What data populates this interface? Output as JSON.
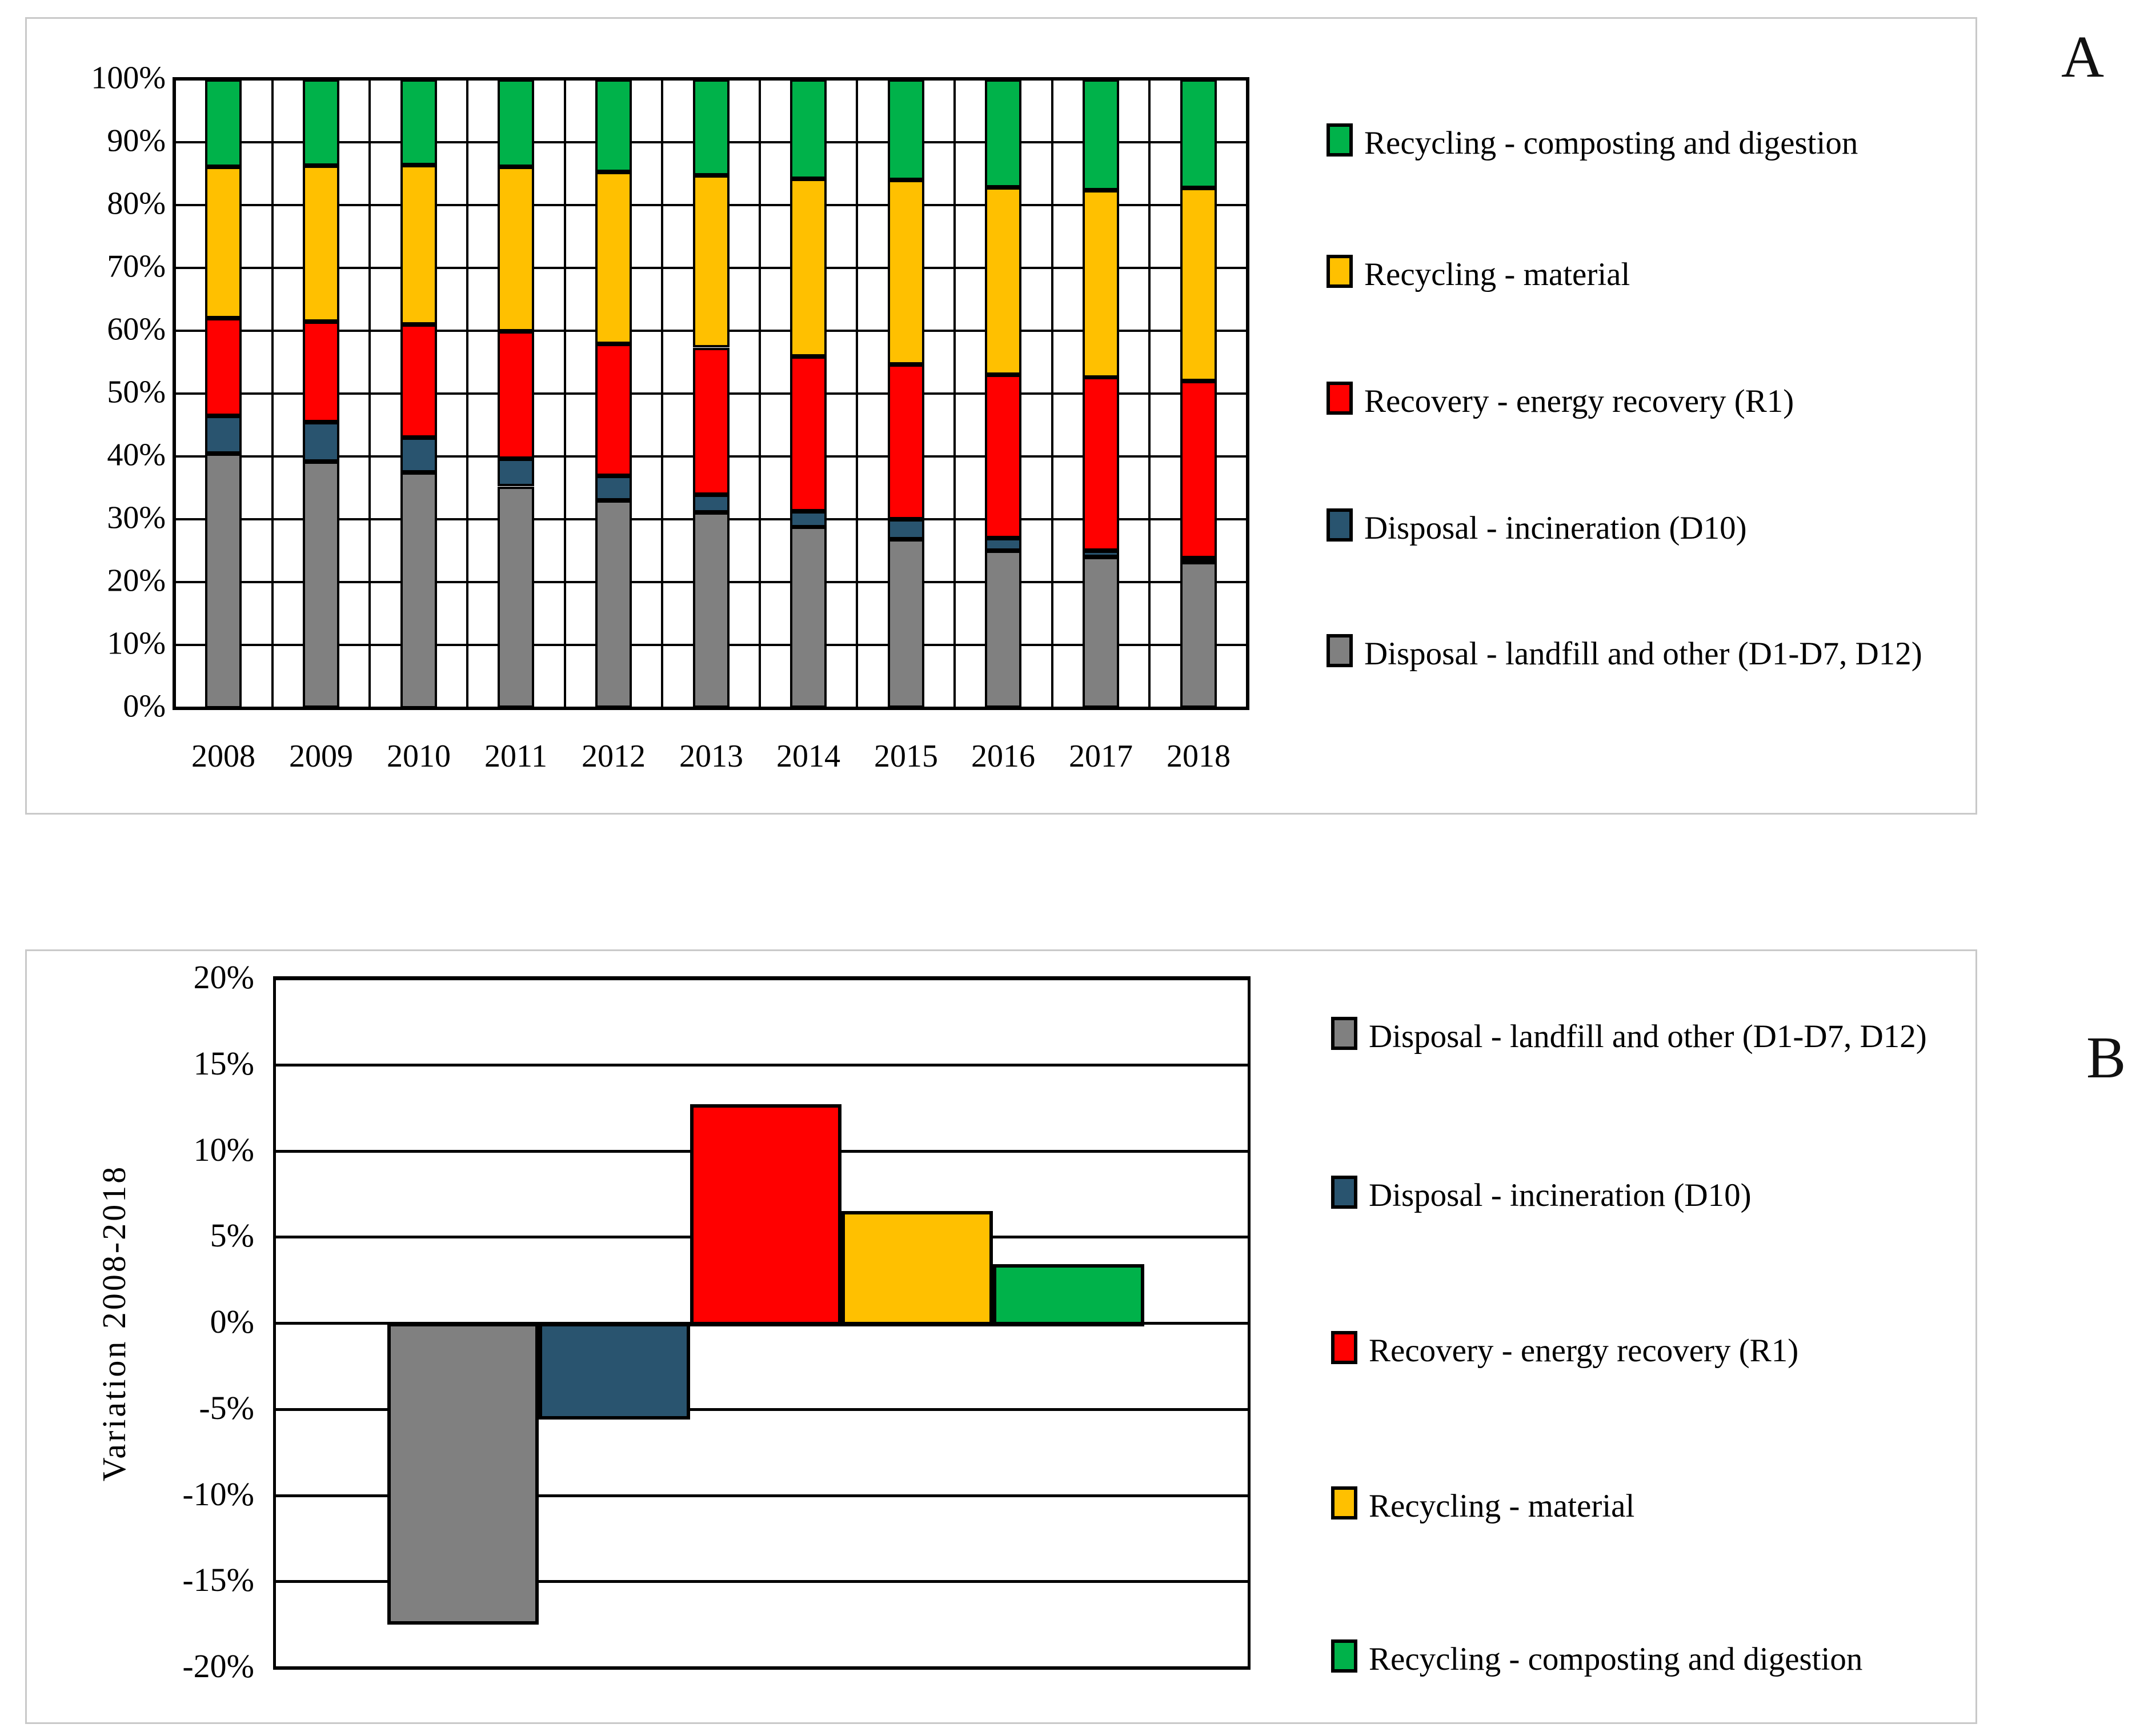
{
  "figure": {
    "panels": [
      {
        "corner_label": "A"
      },
      {
        "corner_label": "B"
      }
    ]
  },
  "colors": {
    "landfill_gray": "#808080",
    "incineration_blue": "#29546F",
    "energy_recovery_red": "#FF0000",
    "material_yellow": "#FFC000",
    "composting_green": "#00B24A",
    "panel_border": "#C9C9C9",
    "grid_black": "#000000"
  },
  "chart_data": [
    {
      "id": "A",
      "type": "bar",
      "stacked": true,
      "percent_stacked": true,
      "title": "",
      "xlabel": "",
      "ylabel": "",
      "ylim": [
        0,
        100
      ],
      "ystep": 10,
      "grid": true,
      "legend_position": "right",
      "categories": [
        "2008",
        "2009",
        "2010",
        "2011",
        "2012",
        "2013",
        "2014",
        "2015",
        "2016",
        "2017",
        "2018"
      ],
      "series": [
        {
          "name": "Disposal - landfill and other (D1-D7, D12)",
          "color": "#808080",
          "values": [
            40.5,
            39.2,
            37.5,
            35.2,
            33.0,
            31.1,
            28.8,
            26.8,
            25.0,
            24.0,
            23.2
          ]
        },
        {
          "name": "Disposal - incineration (D10)",
          "color": "#29546F",
          "values": [
            6.0,
            6.3,
            5.5,
            4.4,
            3.9,
            2.8,
            2.5,
            3.2,
            2.0,
            1.0,
            0.6
          ]
        },
        {
          "name": "Recovery - energy recovery (R1)",
          "color": "#FF0000",
          "values": [
            15.5,
            16.0,
            18.0,
            20.3,
            21.0,
            23.4,
            24.6,
            24.6,
            26.0,
            27.6,
            28.2
          ]
        },
        {
          "name": "Recycling - material",
          "color": "#FFC000",
          "values": [
            24.1,
            24.8,
            25.4,
            26.2,
            27.4,
            27.4,
            28.3,
            29.4,
            29.8,
            29.8,
            30.7
          ]
        },
        {
          "name": "Recycling - composting and digestion",
          "color": "#00B24A",
          "values": [
            13.9,
            13.7,
            13.6,
            13.9,
            14.7,
            15.3,
            15.8,
            16.0,
            17.2,
            17.6,
            17.3
          ]
        }
      ],
      "legend": [
        {
          "label": "Recycling - composting and digestion",
          "color": "#00B24A"
        },
        {
          "label": "Recycling - material",
          "color": "#FFC000"
        },
        {
          "label": "Recovery - energy recovery (R1)",
          "color": "#FF0000"
        },
        {
          "label": "Disposal - incineration (D10)",
          "color": "#29546F"
        },
        {
          "label": "Disposal - landfill and other (D1-D7, D12)",
          "color": "#808080"
        }
      ]
    },
    {
      "id": "B",
      "type": "bar",
      "stacked": false,
      "title": "",
      "xlabel": "",
      "ylabel": "Variation 2008-2018",
      "ylim": [
        -20,
        20
      ],
      "ystep": 5,
      "grid": true,
      "legend_position": "right",
      "categories": [
        "Disposal - landfill and other (D1-D7, D12)",
        "Disposal - incineration (D10)",
        "Recovery - energy recovery (R1)",
        "Recycling - material",
        "Recycling - composting and digestion"
      ],
      "values": [
        -17.3,
        -5.4,
        12.7,
        6.5,
        3.4
      ],
      "bar_colors": [
        "#808080",
        "#29546F",
        "#FF0000",
        "#FFC000",
        "#00B24A"
      ],
      "legend": [
        {
          "label": "Disposal - landfill and other (D1-D7, D12)",
          "color": "#808080"
        },
        {
          "label": "Disposal - incineration (D10)",
          "color": "#29546F"
        },
        {
          "label": "Recovery - energy recovery (R1)",
          "color": "#FF0000"
        },
        {
          "label": "Recycling - material",
          "color": "#FFC000"
        },
        {
          "label": "Recycling - composting and digestion",
          "color": "#00B24A"
        }
      ]
    }
  ]
}
